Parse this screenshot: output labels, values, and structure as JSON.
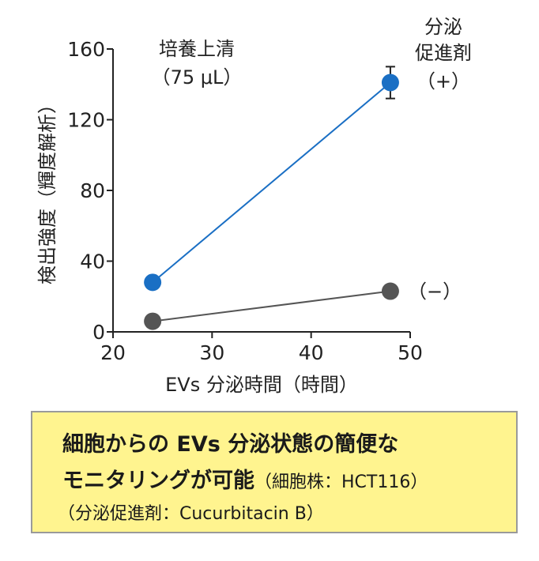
{
  "chart_data": {
    "type": "line",
    "xlabel": "EVs 分泌時間（時間）",
    "ylabel": "検出強度（輝度解析）",
    "xlim": [
      20,
      50
    ],
    "ylim": [
      0,
      160
    ],
    "xticks": [
      "20",
      "30",
      "40",
      "50"
    ],
    "yticks": [
      "0",
      "40",
      "80",
      "120",
      "160"
    ],
    "series": [
      {
        "name": "（+）",
        "color": "#1a6fc4",
        "line_color": "#1a6fc4",
        "points": [
          {
            "x": 24,
            "y": 28
          },
          {
            "x": 48,
            "y": 141,
            "err": 9
          }
        ]
      },
      {
        "name": "（−）",
        "color": "#555555",
        "line_color": "#555555",
        "points": [
          {
            "x": 24,
            "y": 6
          },
          {
            "x": 48,
            "y": 23
          }
        ]
      }
    ],
    "annotations": {
      "culture_title": "培養上清",
      "culture_volume": "（75 μL）",
      "promoter_line1": "分泌",
      "promoter_line2": "促進剤"
    }
  },
  "note": {
    "line1": "細胞からの EVs 分泌状態の簡便な",
    "line2_main": "モニタリングが可能",
    "line2_sub": "（細胞株：HCT116）",
    "line3": "（分泌促進剤：Cucurbitacin B）"
  }
}
